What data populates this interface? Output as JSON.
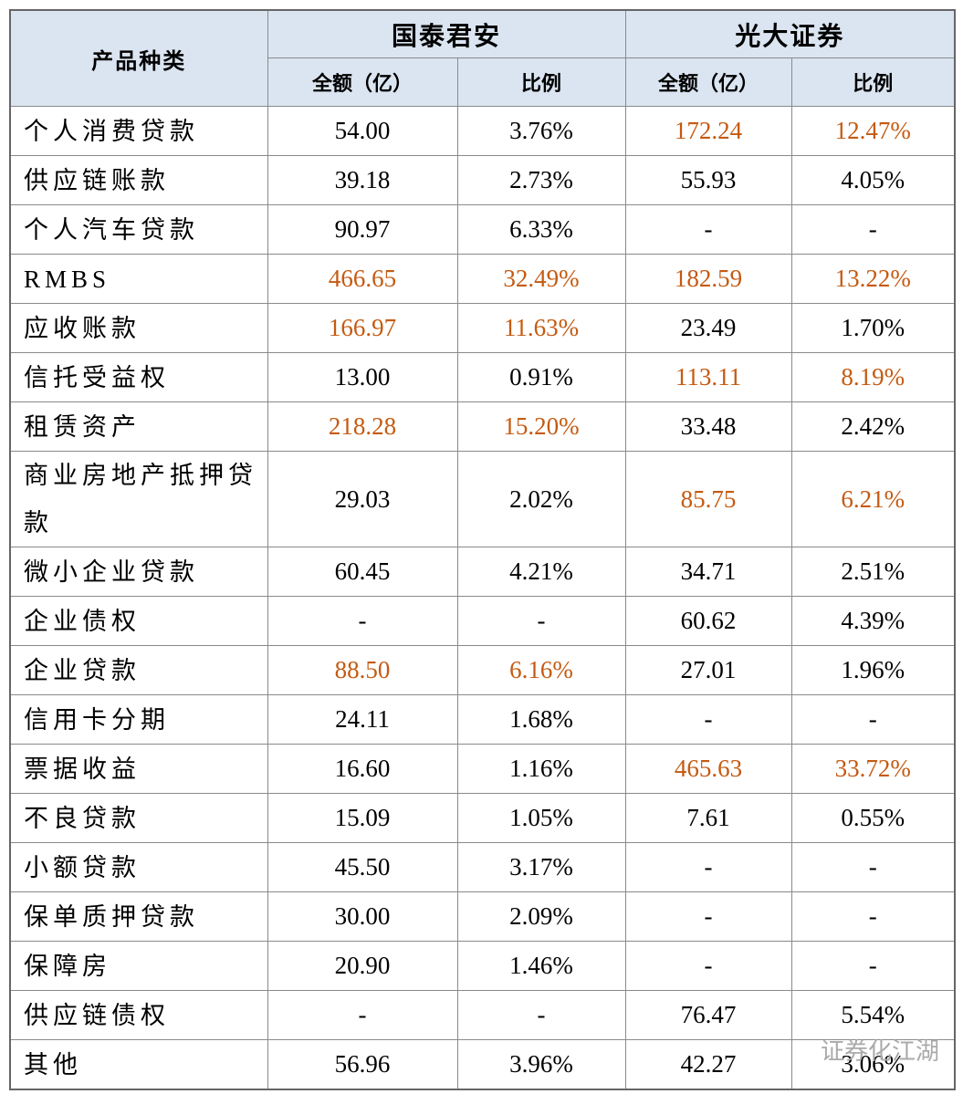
{
  "table": {
    "header": {
      "category": "产品种类",
      "groups": [
        "国泰君安",
        "光大证券"
      ],
      "columns": [
        "全额（亿）",
        "比例",
        "全额（亿）",
        "比例"
      ]
    },
    "rows": [
      [
        "个人消费贷款",
        "54.00",
        "3.76%",
        "172.24",
        "12.47%"
      ],
      [
        "供应链账款",
        "39.18",
        "2.73%",
        "55.93",
        "4.05%"
      ],
      [
        "个人汽车贷款",
        "90.97",
        "6.33%",
        "-",
        "-"
      ],
      [
        "RMBS",
        "466.65",
        "32.49%",
        "182.59",
        "13.22%"
      ],
      [
        "应收账款",
        "166.97",
        "11.63%",
        "23.49",
        "1.70%"
      ],
      [
        "信托受益权",
        "13.00",
        "0.91%",
        "113.11",
        "8.19%"
      ],
      [
        "租赁资产",
        "218.28",
        "15.20%",
        "33.48",
        "2.42%"
      ],
      [
        "商业房地产抵押贷款",
        "29.03",
        "2.02%",
        "85.75",
        "6.21%"
      ],
      [
        "微小企业贷款",
        "60.45",
        "4.21%",
        "34.71",
        "2.51%"
      ],
      [
        "企业债权",
        "-",
        "-",
        "60.62",
        "4.39%"
      ],
      [
        "企业贷款",
        "88.50",
        "6.16%",
        "27.01",
        "1.96%"
      ],
      [
        "信用卡分期",
        "24.11",
        "1.68%",
        "-",
        "-"
      ],
      [
        "票据收益",
        "16.60",
        "1.16%",
        "465.63",
        "33.72%"
      ],
      [
        "不良贷款",
        "15.09",
        "1.05%",
        "7.61",
        "0.55%"
      ],
      [
        "小额贷款",
        "45.50",
        "3.17%",
        "-",
        "-"
      ],
      [
        "保单质押贷款",
        "30.00",
        "2.09%",
        "-",
        "-"
      ],
      [
        "保障房",
        "20.90",
        "1.46%",
        "-",
        "-"
      ],
      [
        "供应链债权",
        "-",
        "-",
        "76.47",
        "5.54%"
      ],
      [
        "其他",
        "56.96",
        "3.96%",
        "42.27",
        "3.06%"
      ]
    ],
    "highlight_color": "#c55a11",
    "highlight": [
      [
        0,
        3
      ],
      [
        0,
        4
      ],
      [
        3,
        1
      ],
      [
        3,
        2
      ],
      [
        3,
        3
      ],
      [
        3,
        4
      ],
      [
        4,
        1
      ],
      [
        4,
        2
      ],
      [
        5,
        3
      ],
      [
        5,
        4
      ],
      [
        6,
        1
      ],
      [
        6,
        2
      ],
      [
        7,
        3
      ],
      [
        7,
        4
      ],
      [
        10,
        1
      ],
      [
        10,
        2
      ],
      [
        12,
        3
      ],
      [
        12,
        4
      ]
    ]
  },
  "watermark": "证券化江湖"
}
